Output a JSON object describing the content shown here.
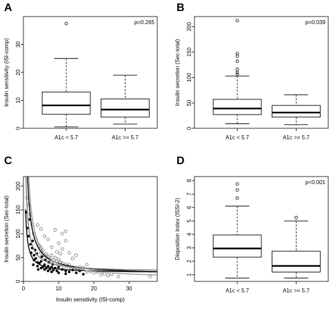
{
  "figure": {
    "panel_labels": [
      "A",
      "B",
      "C",
      "D"
    ]
  },
  "chart_data": [
    {
      "panel": "A",
      "type": "box",
      "categories": [
        "A1c < 5.7",
        "A1c >= 5.7"
      ],
      "ylabel": "Insulin sensitivity (ISI-comp)",
      "ylim": [
        0,
        40
      ],
      "yticks": [
        0,
        10,
        20,
        30
      ],
      "annotation": "p=0.265",
      "boxes": [
        {
          "min": 0.5,
          "q1": 5,
          "median": 8.2,
          "q3": 13,
          "max": 25,
          "outliers": [
            37.5
          ]
        },
        {
          "min": 1.5,
          "q1": 4,
          "median": 6.7,
          "q3": 10.5,
          "max": 19,
          "outliers": []
        }
      ]
    },
    {
      "panel": "B",
      "type": "box",
      "categories": [
        "A1c < 5.7",
        "A1c >= 5.7"
      ],
      "ylabel": "Insulin secretion (Sec-total)",
      "ylim": [
        0,
        220
      ],
      "yticks": [
        0,
        50,
        100,
        150,
        200
      ],
      "annotation": "p=0.039",
      "boxes": [
        {
          "min": 9,
          "q1": 27,
          "median": 39,
          "q3": 57,
          "max": 103,
          "outliers": [
            106,
            110,
            116,
            132,
            142,
            147,
            212
          ]
        },
        {
          "min": 7,
          "q1": 22,
          "median": 31,
          "q3": 45,
          "max": 66,
          "outliers": []
        }
      ]
    },
    {
      "panel": "C",
      "type": "scatter",
      "xlabel": "Insulin sensitivity (ISI-comp)",
      "ylabel": "Insulin secretion (Sec-total)",
      "xlim": [
        0,
        38
      ],
      "ylim": [
        0,
        220
      ],
      "xticks": [
        0,
        10,
        20,
        30
      ],
      "yticks": [
        0,
        50,
        100,
        150,
        200
      ],
      "series": [
        {
          "marker": "filled",
          "points": [
            [
              0.8,
              145
            ],
            [
              1.2,
              112
            ],
            [
              1.5,
              95
            ],
            [
              2,
              78
            ],
            [
              2.2,
              60
            ],
            [
              2.5,
              70
            ],
            [
              3,
              55
            ],
            [
              3,
              45
            ],
            [
              3.5,
              48
            ],
            [
              4,
              40
            ],
            [
              4,
              32
            ],
            [
              4.5,
              38
            ],
            [
              5,
              42
            ],
            [
              5,
              28
            ],
            [
              5.5,
              30
            ],
            [
              6,
              35
            ],
            [
              6,
              25
            ],
            [
              6.5,
              28
            ],
            [
              7,
              32
            ],
            [
              7,
              22
            ],
            [
              7.5,
              26
            ],
            [
              8,
              30
            ],
            [
              8,
              20
            ],
            [
              8.5,
              24
            ],
            [
              9,
              28
            ],
            [
              9.5,
              22
            ],
            [
              10,
              30
            ],
            [
              10,
              18
            ],
            [
              11,
              25
            ],
            [
              12,
              22
            ],
            [
              12,
              16
            ],
            [
              13,
              20
            ],
            [
              14,
              24
            ],
            [
              15,
              18
            ],
            [
              16,
              22
            ],
            [
              17,
              15
            ],
            [
              2.8,
              35
            ],
            [
              3.8,
              58
            ],
            [
              4.2,
              25
            ],
            [
              5.2,
              52
            ],
            [
              6.2,
              45
            ],
            [
              7.2,
              40
            ],
            [
              8.3,
              36
            ],
            [
              1.8,
              130
            ],
            [
              2.6,
              85
            ],
            [
              3.3,
              66
            ]
          ]
        },
        {
          "marker": "open",
          "points": [
            [
              1,
              175
            ],
            [
              1.5,
              160
            ],
            [
              2,
              140
            ],
            [
              2.5,
              120
            ],
            [
              3,
              100
            ],
            [
              3.5,
              90
            ],
            [
              4,
              80
            ],
            [
              4.5,
              75
            ],
            [
              5,
              70
            ],
            [
              5,
              60
            ],
            [
              5.5,
              65
            ],
            [
              6,
              55
            ],
            [
              6,
              50
            ],
            [
              6.5,
              58
            ],
            [
              7,
              52
            ],
            [
              7,
              46
            ],
            [
              7.5,
              48
            ],
            [
              8,
              55
            ],
            [
              8,
              42
            ],
            [
              8.5,
              45
            ],
            [
              9,
              50
            ],
            [
              9,
              38
            ],
            [
              9.5,
              42
            ],
            [
              10,
              46
            ],
            [
              10,
              35
            ],
            [
              10.5,
              40
            ],
            [
              11,
              38
            ],
            [
              11,
              100
            ],
            [
              11.5,
              30
            ],
            [
              12,
              36
            ],
            [
              12,
              85
            ],
            [
              12.5,
              32
            ],
            [
              13,
              34
            ],
            [
              13.5,
              28
            ],
            [
              14,
              30
            ],
            [
              14.5,
              26
            ],
            [
              15,
              28
            ],
            [
              16,
              30
            ],
            [
              16,
              25
            ],
            [
              17,
              28
            ],
            [
              18,
              20
            ],
            [
              19,
              22
            ],
            [
              20,
              18
            ],
            [
              21,
              20
            ],
            [
              22,
              14
            ],
            [
              23,
              16
            ],
            [
              24,
              12
            ],
            [
              25,
              15
            ],
            [
              27,
              10
            ],
            [
              36,
              10
            ],
            [
              9,
              108
            ],
            [
              10,
              80
            ],
            [
              11,
              68
            ],
            [
              13,
              60
            ],
            [
              14,
              48
            ],
            [
              15,
              55
            ],
            [
              18,
              35
            ],
            [
              6,
              95
            ],
            [
              7,
              88
            ],
            [
              8,
              72
            ],
            [
              5,
              110
            ],
            [
              4,
              118
            ],
            [
              12,
              105
            ],
            [
              9.5,
              62
            ],
            [
              10.5,
              58
            ]
          ]
        }
      ],
      "curves": [
        {
          "k": 240,
          "c": 14
        },
        {
          "k": 140,
          "c": 20
        },
        {
          "k": 80,
          "c": 18
        },
        {
          "k": 320,
          "c": 5
        }
      ]
    },
    {
      "panel": "D",
      "type": "box",
      "categories": [
        "A1c < 5.7",
        "A1c >= 5.7"
      ],
      "ylabel": "Disposition index (ISSI-2)",
      "ylim": [
        0.5,
        8.3
      ],
      "yticks": [
        1,
        2,
        3,
        4,
        5,
        6,
        7,
        8
      ],
      "annotation": "p<0.001",
      "boxes": [
        {
          "min": 0.75,
          "q1": 2.3,
          "median": 2.95,
          "q3": 3.95,
          "max": 6.1,
          "outliers": [
            6.7,
            7.3,
            7.75
          ]
        },
        {
          "min": 0.75,
          "q1": 1.2,
          "median": 1.65,
          "q3": 2.75,
          "max": 5.0,
          "outliers": [
            5.25
          ]
        }
      ]
    }
  ]
}
